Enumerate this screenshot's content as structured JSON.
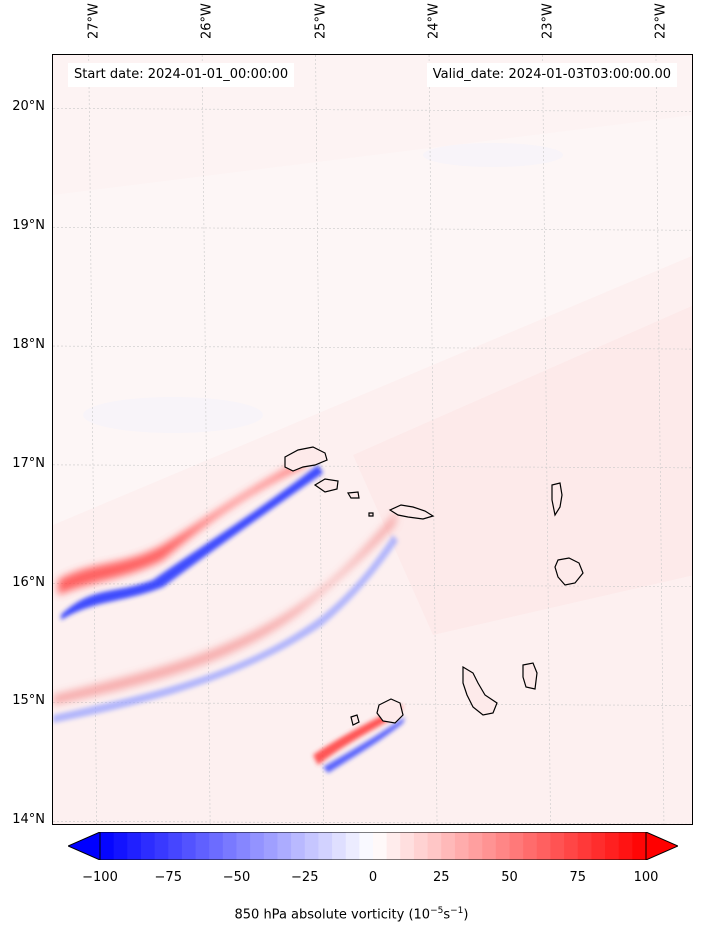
{
  "map": {
    "start_date_text": "Start date: 2024-01-01_00:00:00",
    "valid_date_text": "Valid_date: 2024-01-03T03:00:00.00",
    "longitude_labels": [
      "27°W",
      "26°W",
      "25°W",
      "24°W",
      "23°W",
      "22°W"
    ],
    "latitude_labels": [
      "20°N",
      "19°N",
      "18°N",
      "17°N",
      "16°N",
      "15°N",
      "14°N"
    ],
    "longitudes": [
      -27,
      -26,
      -25,
      -24,
      -23,
      -22
    ],
    "latitudes": [
      20,
      19,
      18,
      17,
      16,
      15,
      14
    ],
    "extent": {
      "lon_min": -27.35,
      "lon_max": -21.7,
      "lat_min": 13.96,
      "lat_max": 20.45
    },
    "islands": [
      "Santo Antão",
      "São Vicente",
      "Santa Luzia",
      "São Nicolau",
      "Sal",
      "Boa Vista",
      "Maio",
      "Santiago",
      "Fogo",
      "Brava"
    ]
  },
  "colorbar": {
    "min": -100,
    "max": 100,
    "ticks": [
      "−100",
      "−75",
      "−50",
      "−25",
      "0",
      "25",
      "50",
      "75",
      "100"
    ],
    "tick_values": [
      -100,
      -75,
      -50,
      -25,
      0,
      25,
      50,
      75,
      100
    ],
    "label_main": "850 hPa absolute vorticity (10",
    "label_exp1": "−5",
    "label_mid": "s",
    "label_exp2": "−1",
    "label_end": ")",
    "colors": {
      "negative": "#0000ff",
      "zero": "#ffffff",
      "positive": "#ff0000"
    }
  }
}
